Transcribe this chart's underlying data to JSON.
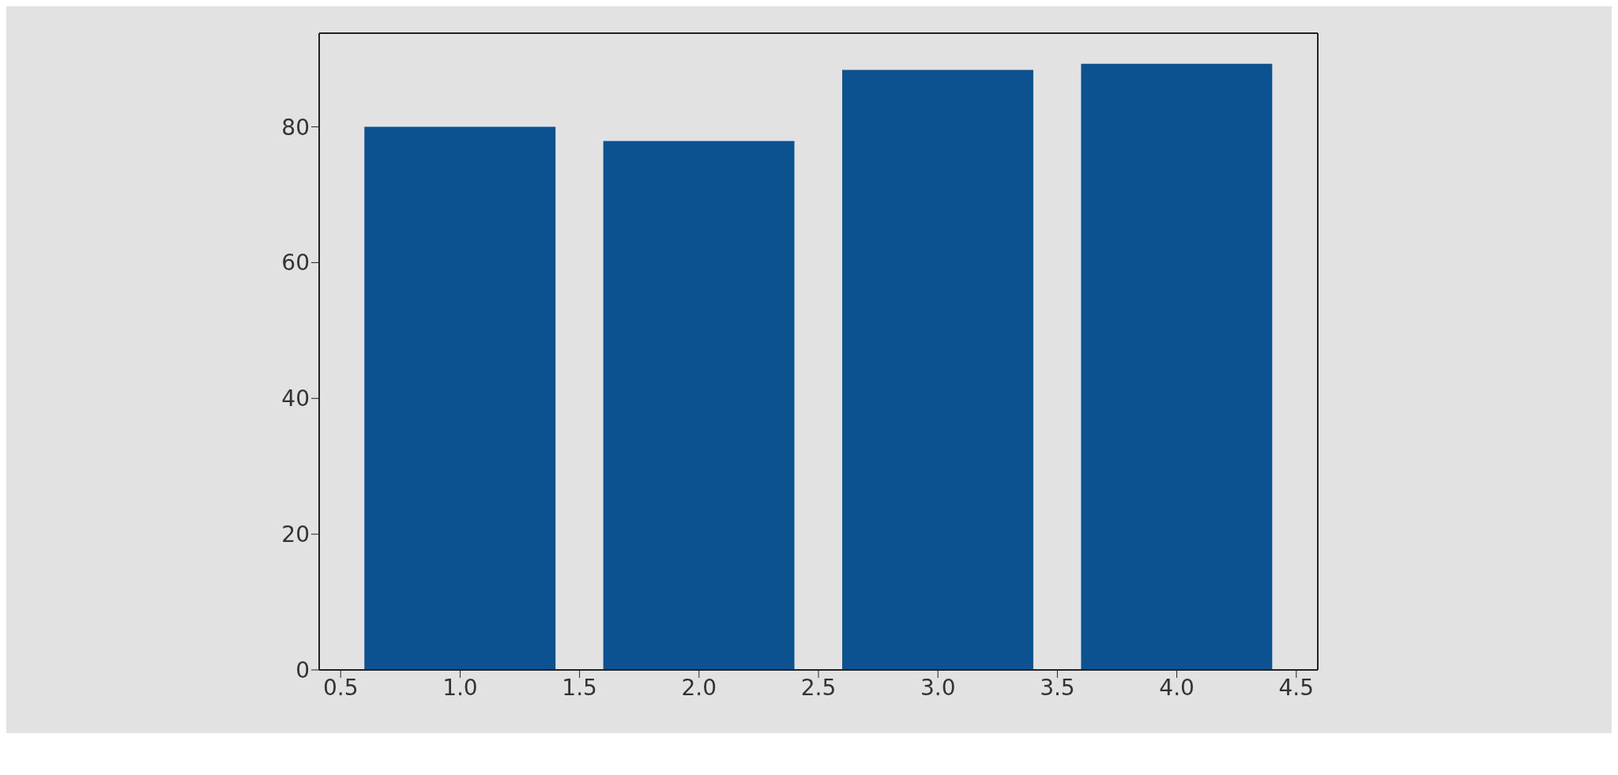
{
  "chart_data": {
    "type": "bar",
    "x": [
      1,
      2,
      3,
      4
    ],
    "values": [
      80,
      77.9,
      88.4,
      89.3
    ],
    "color": "#0d5290",
    "xlim": [
      0.41,
      4.59
    ],
    "xticks": [
      0.5,
      {
        "value": 1,
        "label": "1.0"
      },
      1.5,
      {
        "value": 2,
        "label": "2.0"
      },
      2.5,
      {
        "value": 3,
        "label": "3.0"
      },
      3.5,
      {
        "value": 4,
        "label": "4.0"
      },
      4.5
    ],
    "ylim": [
      0,
      93.8
    ],
    "yticks": [
      0,
      20,
      40,
      60,
      80
    ]
  }
}
